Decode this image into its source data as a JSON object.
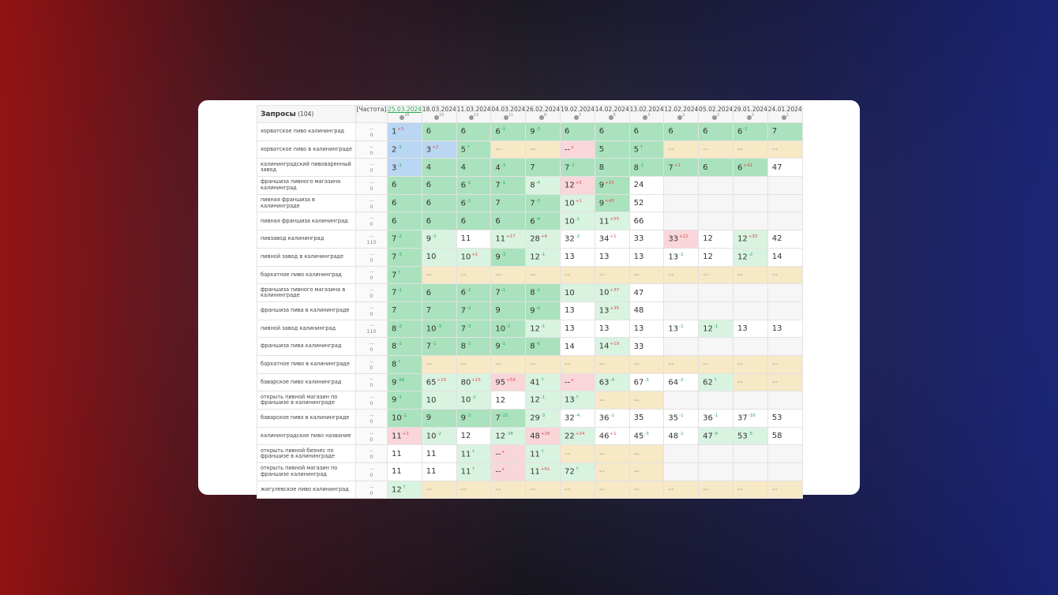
{
  "header": {
    "title": "Запросы",
    "count": "(104)",
    "freq": "[Частота]",
    "dates": [
      [
        "25.03.2024",
        "16"
      ],
      [
        "18.03.2024",
        "15"
      ],
      [
        "11.03.2024",
        "13"
      ],
      [
        "04.03.2024",
        "11"
      ],
      [
        "26.02.2024",
        "8"
      ],
      [
        "19.02.2024",
        "3"
      ],
      [
        "14.02.2024",
        "6"
      ],
      [
        "13.02.2024",
        "3"
      ],
      [
        "12.02.2024",
        "2"
      ],
      [
        "05.02.2024",
        "2"
      ],
      [
        "29.01.2024",
        "2"
      ],
      [
        "24.01.2024",
        "1"
      ]
    ]
  },
  "rows": [
    {
      "q": "хорватское пиво калининград",
      "f": [
        "--",
        "0"
      ],
      "c": [
        [
          1,
          "b",
          "+5"
        ],
        [
          6,
          "g"
        ],
        [
          6,
          "g"
        ],
        [
          6,
          "g",
          "-1"
        ],
        [
          9,
          "g",
          "-3"
        ],
        [
          6,
          "g"
        ],
        [
          6,
          "g"
        ],
        [
          6,
          "g"
        ],
        [
          6,
          "g"
        ],
        [
          6,
          "g"
        ],
        [
          6,
          "g",
          "-1"
        ],
        [
          7,
          "g"
        ]
      ]
    },
    {
      "q": "хорватское пиво в калининграде",
      "f": [
        "--",
        "0"
      ],
      "c": [
        [
          2,
          "b",
          "-1"
        ],
        [
          3,
          "b",
          "+2"
        ],
        [
          5,
          "g",
          "↑"
        ],
        [
          "--",
          "y"
        ],
        [
          "--",
          "y"
        ],
        [
          "--",
          "p",
          "x"
        ],
        [
          5,
          "g"
        ],
        [
          5,
          "g",
          "↑"
        ],
        [
          "--",
          "y"
        ],
        [
          "--",
          "y"
        ],
        [
          "--",
          "y"
        ],
        [
          "--",
          "y"
        ]
      ]
    },
    {
      "q": "калининградский пивоваренный завод",
      "f": [
        "--",
        "0"
      ],
      "c": [
        [
          3,
          "b",
          "-1"
        ],
        [
          4,
          "g"
        ],
        [
          4,
          "g"
        ],
        [
          4,
          "g",
          "-3"
        ],
        [
          7,
          "g"
        ],
        [
          7,
          "g",
          "-1"
        ],
        [
          8,
          "g"
        ],
        [
          8,
          "g",
          "-1"
        ],
        [
          7,
          "g",
          "+1"
        ],
        [
          6,
          "g"
        ],
        [
          6,
          "g",
          "+41"
        ],
        [
          47,
          "w"
        ]
      ]
    },
    {
      "q": "франшиза пивного магазина калининград",
      "f": [
        "--",
        "0"
      ],
      "c": [
        [
          6,
          "g"
        ],
        [
          6,
          "g"
        ],
        [
          6,
          "g",
          "-1"
        ],
        [
          7,
          "g",
          "-1"
        ],
        [
          8,
          "l",
          "-4"
        ],
        [
          12,
          "p",
          "+5"
        ],
        [
          9,
          "g",
          "+15"
        ],
        [
          24,
          "w"
        ],
        [
          null,
          "e"
        ],
        [
          null,
          "e"
        ],
        [
          null,
          "e"
        ],
        [
          null,
          "e"
        ]
      ]
    },
    {
      "q": "пивная франшиза в калининграде",
      "f": [
        "--",
        "0"
      ],
      "c": [
        [
          6,
          "g"
        ],
        [
          6,
          "g"
        ],
        [
          6,
          "g",
          "-1"
        ],
        [
          7,
          "g"
        ],
        [
          7,
          "g",
          "-3"
        ],
        [
          10,
          "l",
          "+1"
        ],
        [
          9,
          "g",
          "+43"
        ],
        [
          52,
          "w"
        ],
        [
          null,
          "e"
        ],
        [
          null,
          "e"
        ],
        [
          null,
          "e"
        ],
        [
          null,
          "e"
        ]
      ]
    },
    {
      "q": "пивная франшиза калининград",
      "f": [
        "--",
        "0"
      ],
      "c": [
        [
          6,
          "g"
        ],
        [
          6,
          "g"
        ],
        [
          6,
          "g"
        ],
        [
          6,
          "g"
        ],
        [
          6,
          "g",
          "-4"
        ],
        [
          10,
          "l",
          "-1"
        ],
        [
          11,
          "l",
          "+55"
        ],
        [
          66,
          "w"
        ],
        [
          null,
          "e"
        ],
        [
          null,
          "e"
        ],
        [
          null,
          "e"
        ],
        [
          null,
          "e"
        ]
      ]
    },
    {
      "q": "пивзавод калининград",
      "f": [
        "--",
        "110"
      ],
      "c": [
        [
          7,
          "g",
          "-2"
        ],
        [
          9,
          "l",
          "-2"
        ],
        [
          11,
          "w"
        ],
        [
          11,
          "l",
          "+17"
        ],
        [
          28,
          "l",
          "+4"
        ],
        [
          32,
          "w",
          "-2"
        ],
        [
          34,
          "w",
          "+1"
        ],
        [
          33,
          "w"
        ],
        [
          33,
          "p",
          "+21"
        ],
        [
          12,
          "w"
        ],
        [
          12,
          "l",
          "+30"
        ],
        [
          42,
          "w"
        ]
      ]
    },
    {
      "q": "пивной завод в калининграде",
      "f": [
        "--",
        "0"
      ],
      "c": [
        [
          7,
          "g",
          "-3"
        ],
        [
          10,
          "l"
        ],
        [
          10,
          "l",
          "+1"
        ],
        [
          9,
          "g",
          "-3"
        ],
        [
          12,
          "l",
          "-1"
        ],
        [
          13,
          "w"
        ],
        [
          13,
          "w"
        ],
        [
          13,
          "w"
        ],
        [
          13,
          "w",
          "-1"
        ],
        [
          12,
          "w"
        ],
        [
          12,
          "l",
          "-2"
        ],
        [
          14,
          "w"
        ]
      ]
    },
    {
      "q": "бархатное пиво калининград",
      "f": [
        "--",
        "0"
      ],
      "c": [
        [
          7,
          "g",
          "↑"
        ],
        [
          "--",
          "y"
        ],
        [
          "--",
          "y"
        ],
        [
          "--",
          "y"
        ],
        [
          "--",
          "y"
        ],
        [
          "--",
          "y"
        ],
        [
          "--",
          "y"
        ],
        [
          "--",
          "y"
        ],
        [
          "--",
          "y"
        ],
        [
          "--",
          "y"
        ],
        [
          "--",
          "y"
        ],
        [
          "--",
          "y"
        ]
      ]
    },
    {
      "q": "франшиза пивного магазина в калининграде",
      "f": [
        "--",
        "0"
      ],
      "c": [
        [
          7,
          "g",
          "-1"
        ],
        [
          6,
          "g"
        ],
        [
          6,
          "g",
          "-1"
        ],
        [
          7,
          "g",
          "-1"
        ],
        [
          8,
          "g",
          "-2"
        ],
        [
          10,
          "l"
        ],
        [
          10,
          "l",
          "+37"
        ],
        [
          47,
          "w"
        ],
        [
          null,
          "e"
        ],
        [
          null,
          "e"
        ],
        [
          null,
          "e"
        ],
        [
          null,
          "e"
        ]
      ]
    },
    {
      "q": "франшиза пива в калининграде",
      "f": [
        "--",
        "0"
      ],
      "c": [
        [
          7,
          "g"
        ],
        [
          7,
          "g"
        ],
        [
          7,
          "g",
          "-2"
        ],
        [
          9,
          "g"
        ],
        [
          9,
          "g",
          "-4"
        ],
        [
          13,
          "w"
        ],
        [
          13,
          "l",
          "+35"
        ],
        [
          48,
          "w"
        ],
        [
          null,
          "e"
        ],
        [
          null,
          "e"
        ],
        [
          null,
          "e"
        ],
        [
          null,
          "e"
        ]
      ]
    },
    {
      "q": "пивной завод калининград",
      "f": [
        "--",
        "110"
      ],
      "c": [
        [
          8,
          "g",
          "-2"
        ],
        [
          10,
          "g",
          "-3"
        ],
        [
          7,
          "g",
          "-3"
        ],
        [
          10,
          "g",
          "-2"
        ],
        [
          12,
          "l",
          "-1"
        ],
        [
          13,
          "w"
        ],
        [
          13,
          "w"
        ],
        [
          13,
          "w"
        ],
        [
          13,
          "w",
          "-1"
        ],
        [
          12,
          "l",
          "-1"
        ],
        [
          13,
          "w"
        ],
        [
          13,
          "w"
        ]
      ]
    },
    {
      "q": "франшиза пива калининград",
      "f": [
        "--",
        "0"
      ],
      "c": [
        [
          8,
          "g",
          "-1"
        ],
        [
          7,
          "g",
          "-1"
        ],
        [
          8,
          "g",
          "-1"
        ],
        [
          9,
          "g",
          "-1"
        ],
        [
          8,
          "g",
          "-6"
        ],
        [
          14,
          "w"
        ],
        [
          14,
          "l",
          "+19"
        ],
        [
          33,
          "w"
        ],
        [
          null,
          "e"
        ],
        [
          null,
          "e"
        ],
        [
          null,
          "e"
        ],
        [
          null,
          "e"
        ]
      ]
    },
    {
      "q": "бархатное пиво в калининграде",
      "f": [
        "--",
        "0"
      ],
      "c": [
        [
          8,
          "g",
          "↑"
        ],
        [
          "--",
          "y"
        ],
        [
          "--",
          "y"
        ],
        [
          "--",
          "y"
        ],
        [
          "--",
          "y"
        ],
        [
          "--",
          "y"
        ],
        [
          "--",
          "y"
        ],
        [
          "--",
          "y"
        ],
        [
          "--",
          "y"
        ],
        [
          "--",
          "y"
        ],
        [
          "--",
          "y"
        ],
        [
          "--",
          "y"
        ]
      ]
    },
    {
      "q": "баварское пиво калининград",
      "f": [
        "--",
        "0"
      ],
      "c": [
        [
          9,
          "g",
          "-56"
        ],
        [
          65,
          "l",
          "+15"
        ],
        [
          80,
          "l",
          "+15"
        ],
        [
          95,
          "p",
          "+54"
        ],
        [
          41,
          "l",
          "↑"
        ],
        [
          "--",
          "p",
          "x"
        ],
        [
          63,
          "l",
          "-4"
        ],
        [
          67,
          "w",
          "-3"
        ],
        [
          64,
          "w",
          "-2"
        ],
        [
          62,
          "l",
          "↑"
        ],
        [
          "--",
          "y"
        ],
        [
          "--",
          "y"
        ]
      ]
    },
    {
      "q": "открыть пивной магазин по франшизе в калининграде",
      "f": [
        "--",
        "0"
      ],
      "c": [
        [
          9,
          "g",
          "-1"
        ],
        [
          10,
          "l"
        ],
        [
          10,
          "l",
          "-2"
        ],
        [
          12,
          "w"
        ],
        [
          12,
          "l",
          "-1"
        ],
        [
          13,
          "l",
          "↑"
        ],
        [
          "--",
          "y"
        ],
        [
          "--",
          "y"
        ],
        [
          null,
          "e"
        ],
        [
          null,
          "e"
        ],
        [
          null,
          "e"
        ],
        [
          null,
          "e"
        ]
      ]
    },
    {
      "q": "баварское пиво в калининграде",
      "f": [
        "--",
        "0"
      ],
      "c": [
        [
          10,
          "g",
          "-1"
        ],
        [
          9,
          "g"
        ],
        [
          9,
          "g",
          "-2"
        ],
        [
          7,
          "g",
          "-22"
        ],
        [
          29,
          "l",
          "-3"
        ],
        [
          32,
          "w",
          "-4"
        ],
        [
          36,
          "w",
          "-1"
        ],
        [
          35,
          "w"
        ],
        [
          35,
          "w",
          "-1"
        ],
        [
          36,
          "w",
          "-1"
        ],
        [
          37,
          "w",
          "-16"
        ],
        [
          53,
          "w"
        ]
      ]
    },
    {
      "q": "калининградское пиво название",
      "f": [
        "--",
        "0"
      ],
      "c": [
        [
          11,
          "p",
          "+1"
        ],
        [
          10,
          "l",
          "-2"
        ],
        [
          12,
          "w"
        ],
        [
          12,
          "l",
          "-36"
        ],
        [
          48,
          "p",
          "+26"
        ],
        [
          22,
          "l",
          "+24"
        ],
        [
          46,
          "w",
          "+1"
        ],
        [
          45,
          "w",
          "-3"
        ],
        [
          48,
          "w",
          "-1"
        ],
        [
          47,
          "l",
          "-6"
        ],
        [
          53,
          "l",
          "-5"
        ],
        [
          58,
          "w"
        ]
      ]
    },
    {
      "q": "открыть пивной бизнес по франшизе в калининграде",
      "f": [
        "--",
        "0"
      ],
      "c": [
        [
          11,
          "w"
        ],
        [
          11,
          "w"
        ],
        [
          11,
          "l",
          "↑"
        ],
        [
          "--",
          "p",
          "x"
        ],
        [
          11,
          "l",
          "↑"
        ],
        [
          "--",
          "y"
        ],
        [
          "--",
          "y"
        ],
        [
          "--",
          "y"
        ],
        [
          null,
          "e"
        ],
        [
          null,
          "e"
        ],
        [
          null,
          "e"
        ],
        [
          null,
          "e"
        ]
      ]
    },
    {
      "q": "открыть пивной магазин по франшизе калининград",
      "f": [
        "--",
        "0"
      ],
      "c": [
        [
          11,
          "w"
        ],
        [
          11,
          "w"
        ],
        [
          11,
          "l",
          "↑"
        ],
        [
          "--",
          "p",
          "x"
        ],
        [
          11,
          "l",
          "+61"
        ],
        [
          72,
          "l",
          "↑"
        ],
        [
          "--",
          "y"
        ],
        [
          "--",
          "y"
        ],
        [
          null,
          "e"
        ],
        [
          null,
          "e"
        ],
        [
          null,
          "e"
        ],
        [
          null,
          "e"
        ]
      ]
    },
    {
      "q": "жигулевское пиво калининград",
      "f": [
        "--",
        "0"
      ],
      "c": [
        [
          12,
          "l",
          "↑"
        ],
        [
          "--",
          "y"
        ],
        [
          "--",
          "y"
        ],
        [
          "--",
          "y"
        ],
        [
          "--",
          "y"
        ],
        [
          "--",
          "y"
        ],
        [
          "--",
          "y"
        ],
        [
          "--",
          "y"
        ],
        [
          "--",
          "y"
        ],
        [
          "--",
          "y"
        ],
        [
          "--",
          "y"
        ],
        [
          "--",
          "y"
        ]
      ]
    }
  ]
}
